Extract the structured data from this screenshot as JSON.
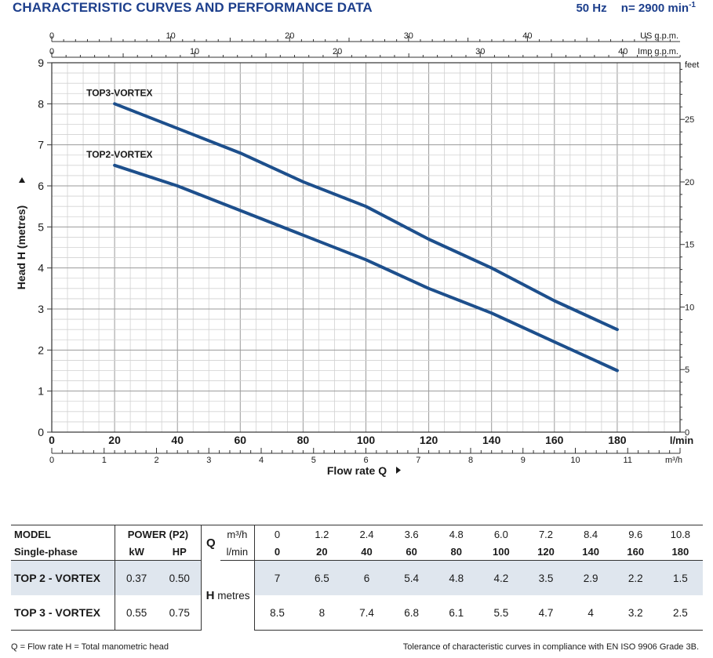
{
  "header": {
    "title": "CHARACTERISTIC CURVES AND PERFORMANCE DATA",
    "freq": "50 Hz",
    "speed_prefix": "n= 2900 min",
    "speed_exp": "-1"
  },
  "chart_data": {
    "type": "line",
    "xlabel": "Flow rate Q",
    "ylabel": "Head H (metres)",
    "x_unit": "l/min",
    "x2_unit": "m³/h",
    "top1_unit": "US g.p.m.",
    "top2_unit": "Imp g.p.m.",
    "y2_unit": "feet",
    "xlim": [
      0,
      200
    ],
    "ylim": [
      0,
      9
    ],
    "x_ticks": [
      "0",
      "20",
      "40",
      "60",
      "80",
      "100",
      "120",
      "140",
      "160",
      "180"
    ],
    "m3h_ticks": [
      "0",
      "1",
      "2",
      "3",
      "4",
      "5",
      "6",
      "7",
      "8",
      "9",
      "10",
      "11"
    ],
    "us_gpm_ticks": [
      "0",
      "10",
      "20",
      "30",
      "40"
    ],
    "imp_gpm_ticks": [
      "0",
      "10",
      "20",
      "30",
      "40"
    ],
    "y_ticks": [
      "0",
      "1",
      "2",
      "3",
      "4",
      "5",
      "6",
      "7",
      "8",
      "9"
    ],
    "feet_ticks": [
      "0",
      "5",
      "10",
      "15",
      "20",
      "25"
    ],
    "grid": true,
    "line_color": "#1d4f8c",
    "series": [
      {
        "name": "TOP3-VORTEX",
        "x": [
          20,
          40,
          60,
          80,
          100,
          120,
          140,
          160,
          180
        ],
        "values": [
          8.0,
          7.4,
          6.8,
          6.1,
          5.5,
          4.7,
          4.0,
          3.2,
          2.5
        ]
      },
      {
        "name": "TOP2-VORTEX",
        "x": [
          20,
          40,
          60,
          80,
          100,
          120,
          140,
          160,
          180
        ],
        "values": [
          6.5,
          6.0,
          5.4,
          4.8,
          4.2,
          3.5,
          2.9,
          2.2,
          1.5
        ]
      }
    ]
  },
  "table": {
    "model_label": "MODEL",
    "phase_label": "Single-phase",
    "power_label": "POWER (P2)",
    "kw_label": "kW",
    "hp_label": "HP",
    "q_label": "Q",
    "m3h_label": "m³/h",
    "lmin_label": "l/min",
    "h_label": "H",
    "metres_label": "metres",
    "m3h_values": [
      "0",
      "1.2",
      "2.4",
      "3.6",
      "4.8",
      "6.0",
      "7.2",
      "8.4",
      "9.6",
      "10.8"
    ],
    "lmin_values": [
      "0",
      "20",
      "40",
      "60",
      "80",
      "100",
      "120",
      "140",
      "160",
      "180"
    ],
    "rows": [
      {
        "model": "TOP 2 - VORTEX",
        "kw": "0.37",
        "hp": "0.50",
        "h": [
          "7",
          "6.5",
          "6",
          "5.4",
          "4.8",
          "4.2",
          "3.5",
          "2.9",
          "2.2",
          "1.5"
        ]
      },
      {
        "model": "TOP 3 - VORTEX",
        "kw": "0.55",
        "hp": "0.75",
        "h": [
          "8.5",
          "8",
          "7.4",
          "6.8",
          "6.1",
          "5.5",
          "4.7",
          "4",
          "3.2",
          "2.5"
        ]
      }
    ]
  },
  "footer": {
    "legend": "Q = Flow rate  H = Total manometric head",
    "tolerance": "Tolerance of characteristic curves in compliance with EN ISO 9906 Grade 3B."
  }
}
